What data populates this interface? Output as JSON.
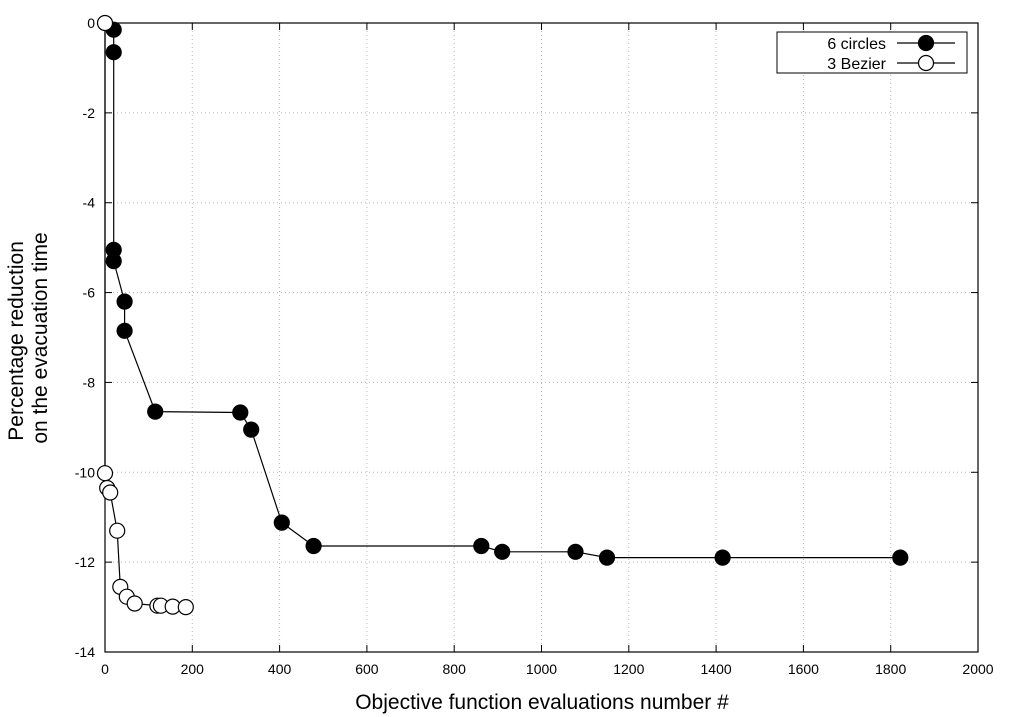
{
  "chart_data": {
    "type": "line",
    "title": "",
    "xlabel": "Objective function evaluations number #",
    "ylabel_lines": [
      "Percentage reduction",
      "on the evacuation time"
    ],
    "xlim": [
      0,
      2000
    ],
    "ylim": [
      -14,
      0
    ],
    "xticks": [
      0,
      200,
      400,
      600,
      800,
      1000,
      1200,
      1400,
      1600,
      1800,
      2000
    ],
    "yticks": [
      0,
      -2,
      -4,
      -6,
      -8,
      -10,
      -12,
      -14
    ],
    "grid": true,
    "legend_position": "top-right",
    "series": [
      {
        "name": "6 circles",
        "marker": "filled-circle",
        "x": [
          20,
          20,
          20,
          20,
          45,
          45,
          115,
          310,
          335,
          405,
          478,
          862,
          910,
          1078,
          1150,
          1415,
          1822
        ],
        "y": [
          -0.15,
          -0.65,
          -5.05,
          -5.3,
          -6.2,
          -6.85,
          -8.65,
          -8.67,
          -9.05,
          -11.12,
          -11.64,
          -11.64,
          -11.77,
          -11.77,
          -11.9,
          -11.9,
          -11.9
        ]
      },
      {
        "name": "3 Bezier",
        "marker": "open-circle",
        "x": [
          0,
          0,
          5,
          12,
          28,
          35,
          50,
          68,
          120,
          128,
          155,
          185
        ],
        "y": [
          0,
          -10.02,
          -10.35,
          -10.45,
          -11.3,
          -12.55,
          -12.77,
          -12.92,
          -12.97,
          -12.97,
          -12.99,
          -13.0
        ]
      }
    ]
  }
}
